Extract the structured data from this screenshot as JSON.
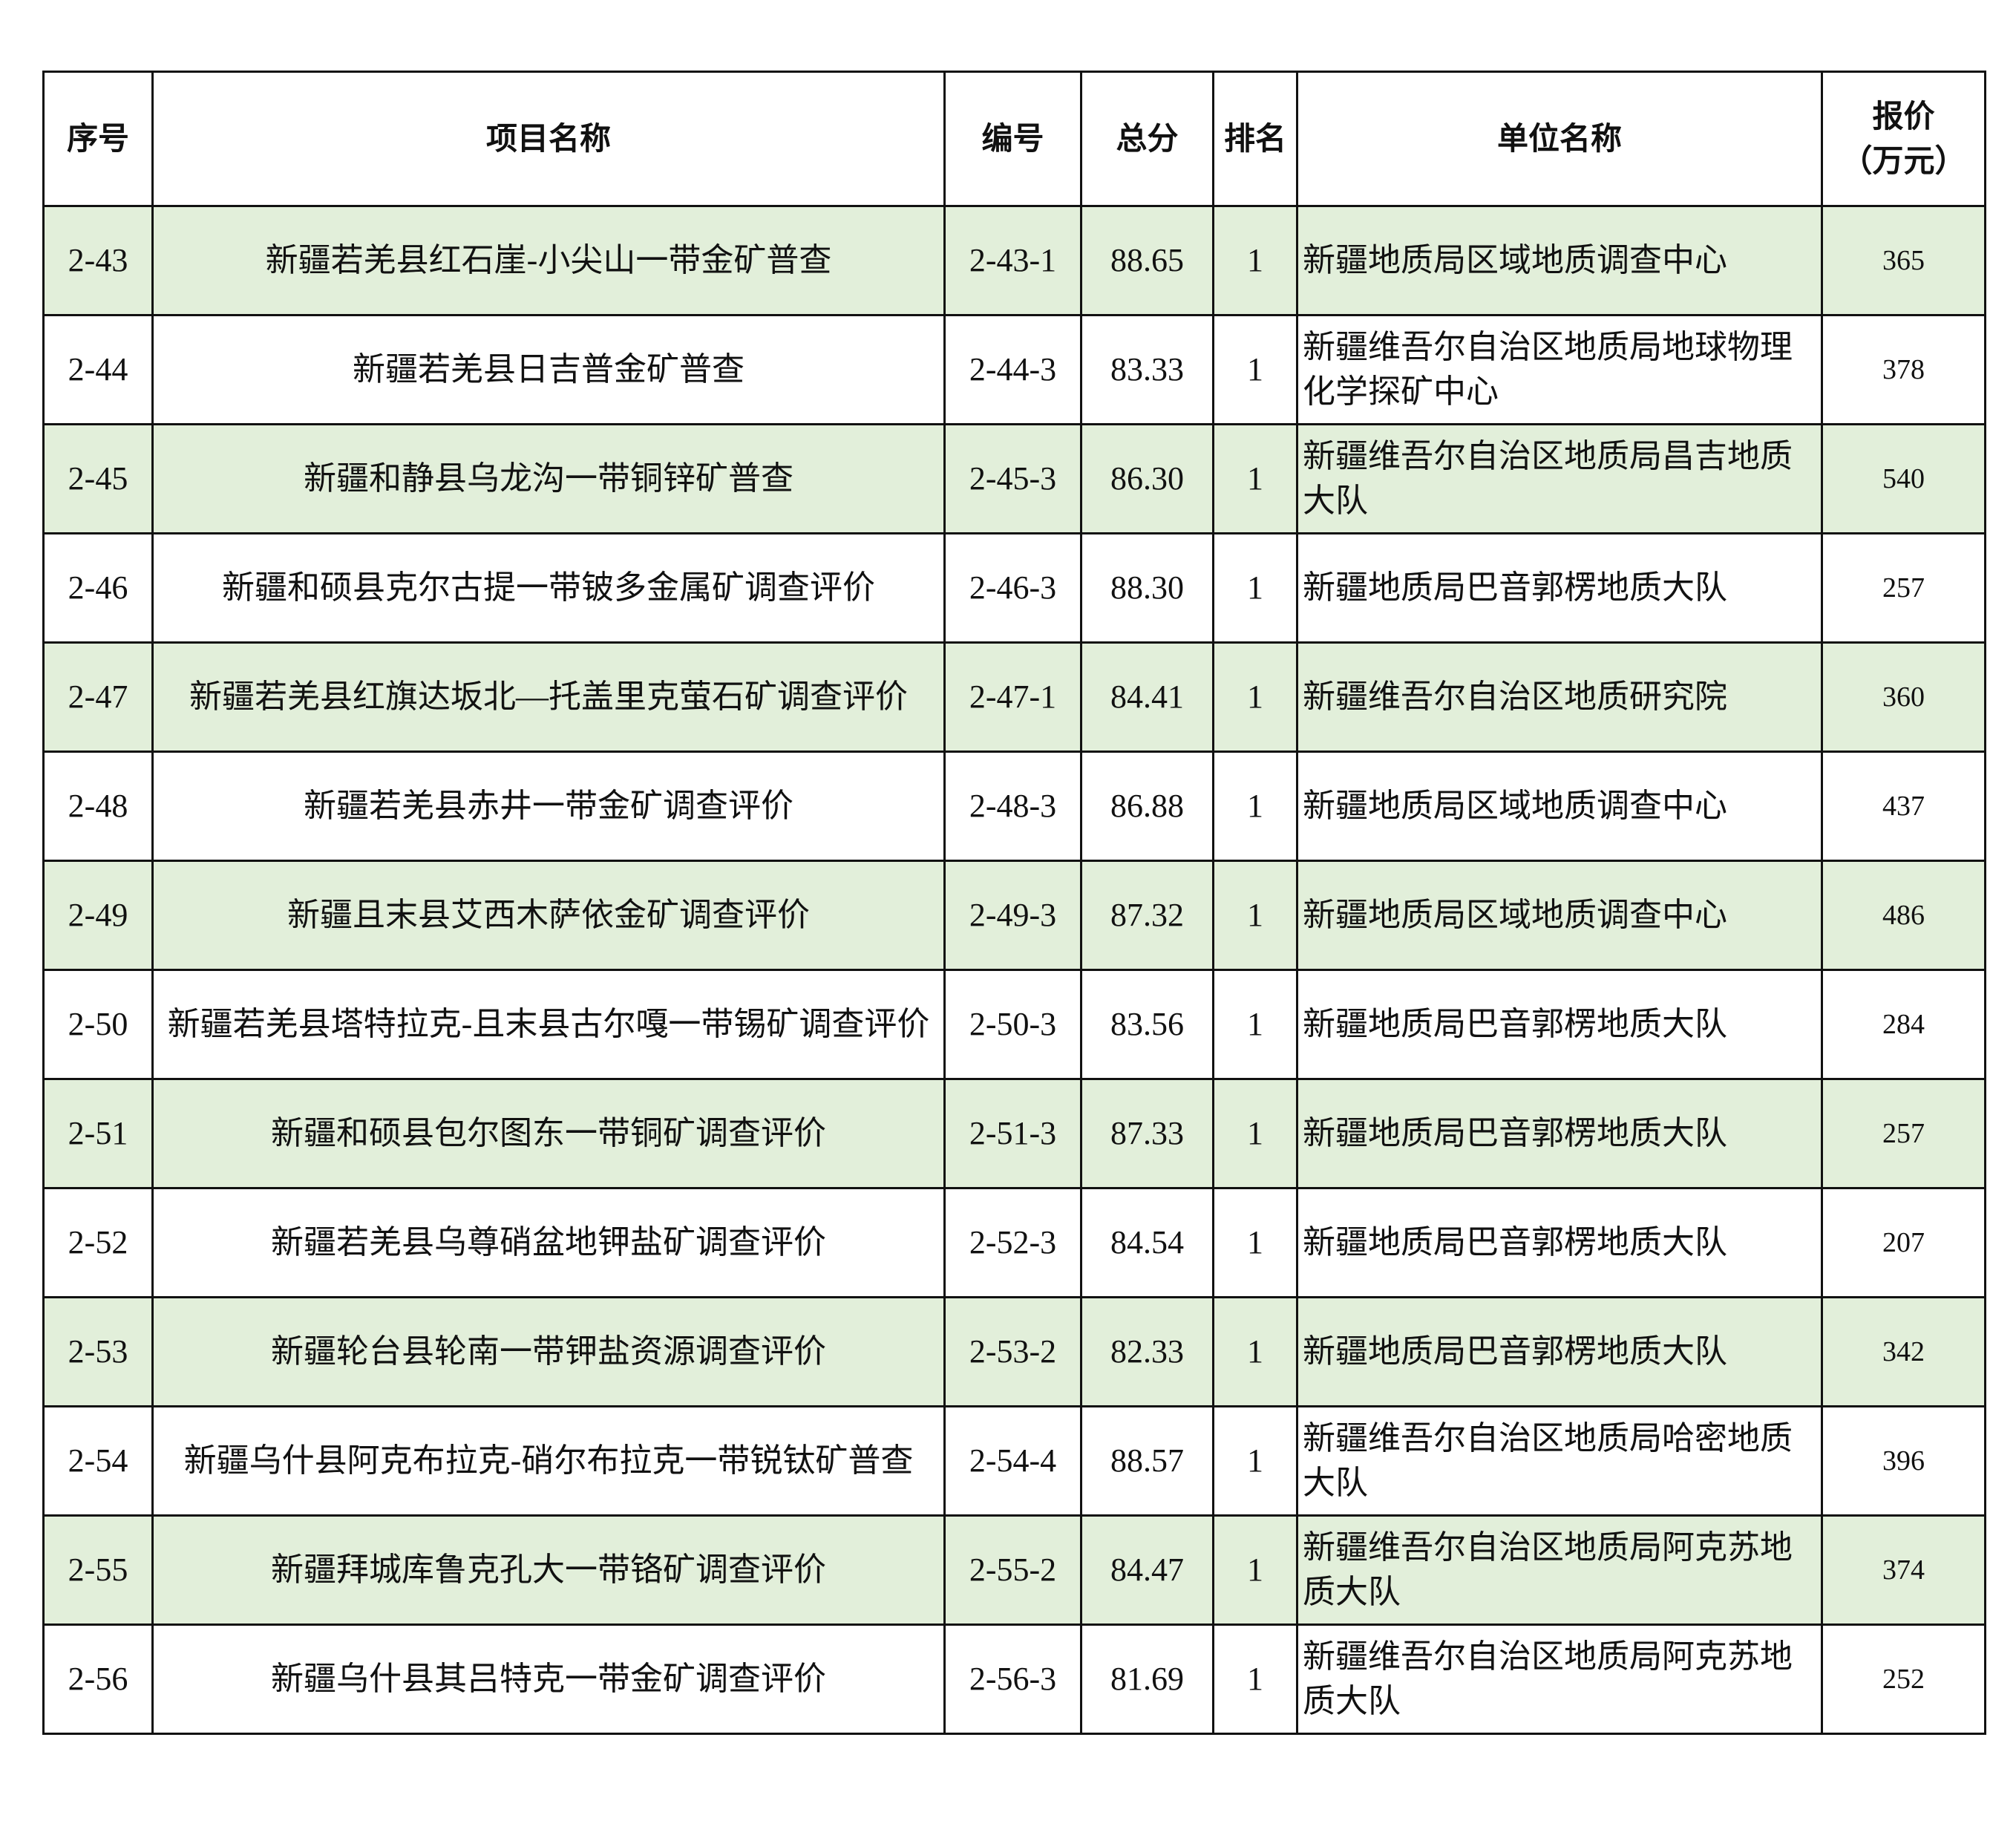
{
  "table": {
    "headers": [
      "序号",
      "项目名称",
      "编号",
      "总分",
      "排名",
      "单位名称",
      "报价\n（万元）"
    ],
    "header_price_line1": "报价",
    "header_price_line2": "（万元）",
    "shade_color": "#e2efda",
    "rows": [
      {
        "seq": "2-43",
        "project": "新疆若羌县红石崖-小尖山一带金矿普查",
        "code": "2-43-1",
        "score": "88.65",
        "rank": "1",
        "unit": "新疆地质局区域地质调查中心",
        "price": "365"
      },
      {
        "seq": "2-44",
        "project": "新疆若羌县日吉普金矿普查",
        "code": "2-44-3",
        "score": "83.33",
        "rank": "1",
        "unit": "新疆维吾尔自治区地质局地球物理化学探矿中心",
        "price": "378"
      },
      {
        "seq": "2-45",
        "project": "新疆和静县乌龙沟一带铜锌矿普查",
        "code": "2-45-3",
        "score": "86.30",
        "rank": "1",
        "unit": "新疆维吾尔自治区地质局昌吉地质大队",
        "price": "540"
      },
      {
        "seq": "2-46",
        "project": "新疆和硕县克尔古提一带铍多金属矿调查评价",
        "code": "2-46-3",
        "score": "88.30",
        "rank": "1",
        "unit": "新疆地质局巴音郭楞地质大队",
        "price": "257"
      },
      {
        "seq": "2-47",
        "project": "新疆若羌县红旗达坂北—托盖里克萤石矿调查评价",
        "code": "2-47-1",
        "score": "84.41",
        "rank": "1",
        "unit": "新疆维吾尔自治区地质研究院",
        "price": "360"
      },
      {
        "seq": "2-48",
        "project": "新疆若羌县赤井一带金矿调查评价",
        "code": "2-48-3",
        "score": "86.88",
        "rank": "1",
        "unit": "新疆地质局区域地质调查中心",
        "price": "437"
      },
      {
        "seq": "2-49",
        "project": "新疆且末县艾西木萨依金矿调查评价",
        "code": "2-49-3",
        "score": "87.32",
        "rank": "1",
        "unit": "新疆地质局区域地质调查中心",
        "price": "486"
      },
      {
        "seq": "2-50",
        "project": "新疆若羌县塔特拉克-且末县古尔嘎一带锡矿调查评价",
        "code": "2-50-3",
        "score": "83.56",
        "rank": "1",
        "unit": "新疆地质局巴音郭楞地质大队",
        "price": "284"
      },
      {
        "seq": "2-51",
        "project": "新疆和硕县包尔图东一带铜矿调查评价",
        "code": "2-51-3",
        "score": "87.33",
        "rank": "1",
        "unit": "新疆地质局巴音郭楞地质大队",
        "price": "257"
      },
      {
        "seq": "2-52",
        "project": "新疆若羌县乌尊硝盆地钾盐矿调查评价",
        "code": "2-52-3",
        "score": "84.54",
        "rank": "1",
        "unit": "新疆地质局巴音郭楞地质大队",
        "price": "207"
      },
      {
        "seq": "2-53",
        "project": "新疆轮台县轮南一带钾盐资源调查评价",
        "code": "2-53-2",
        "score": "82.33",
        "rank": "1",
        "unit": "新疆地质局巴音郭楞地质大队",
        "price": "342"
      },
      {
        "seq": "2-54",
        "project": "新疆乌什县阿克布拉克-硝尔布拉克一带锐钛矿普查",
        "code": "2-54-4",
        "score": "88.57",
        "rank": "1",
        "unit": "新疆维吾尔自治区地质局哈密地质大队",
        "price": "396"
      },
      {
        "seq": "2-55",
        "project": "新疆拜城库鲁克孔大一带铬矿调查评价",
        "code": "2-55-2",
        "score": "84.47",
        "rank": "1",
        "unit": "新疆维吾尔自治区地质局阿克苏地质大队",
        "price": "374"
      },
      {
        "seq": "2-56",
        "project": "新疆乌什县其吕特克一带金矿调查评价",
        "code": "2-56-3",
        "score": "81.69",
        "rank": "1",
        "unit": "新疆维吾尔自治区地质局阿克苏地质大队",
        "price": "252"
      }
    ]
  }
}
